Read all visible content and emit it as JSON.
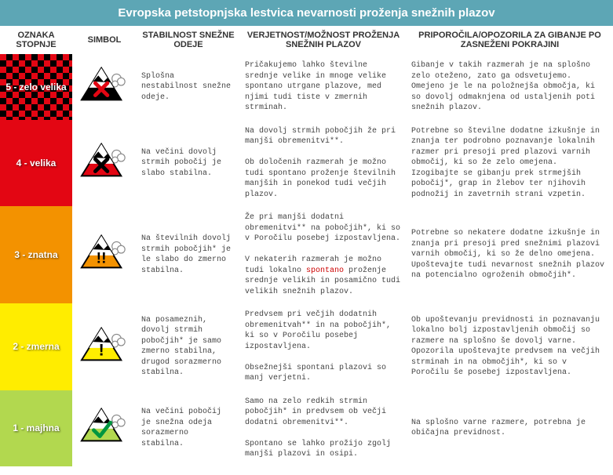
{
  "title": "Evropska petstopnjska lestvica nevarnosti proženja snežnih plazov",
  "title_bg": "#5da6b5",
  "title_color": "#ffffff",
  "columns": {
    "c1": "OZNAKA STOPNJE",
    "c2": "SIMBOL",
    "c3": "STABILNOST SNEŽNE ODEJE",
    "c4": "VERJETNOST/MOŽNOST PROŽENJA SNEŽNIH PLAZOV",
    "c5": "PRIPOROČILA/OPOZORILA ZA GIBANJE PO ZASNEŽENI POKRAJINI"
  },
  "rows": [
    {
      "label": "5 - zelo velika",
      "bg": "#e30613",
      "checker": true,
      "symbol": {
        "body": "#000000",
        "mark": "cross",
        "mark_color": "#e30613"
      },
      "stability": "Splošna nestabilnost snežne odeje.",
      "likelihood": "Pričakujemo lahko številne srednje velike in mnoge velike spontano utrgane plazove, med njimi tudi tiste v zmernih strminah.",
      "advice": "Gibanje v takih razmerah je na splošno zelo oteženo, zato ga odsvetujemo.\nOmejeno je le na položnejša območja, ki so dovolj odmaknjena od ustaljenih poti snežnih plazov."
    },
    {
      "label": "4 - velika",
      "bg": "#e30613",
      "symbol": {
        "body": "#e30613",
        "mark": "cross",
        "mark_color": "#000000"
      },
      "stability": "Na večini dovolj strmih pobočij je slabo stabilna.",
      "likelihood": "Na dovolj strmih pobočjih že pri manjši obremenitvi**.\n\nOb določenih razmerah je možno tudi spontano proženje številnih manjših in ponekod tudi večjih plazov.",
      "advice": "Potrebne so številne dodatne izkušnje in znanja ter podrobno poznavanje lokalnih razmer pri presoji pred plazovi varnih območij, ki so že zelo omejena.\nIzogibajte se gibanju prek strmejših pobočij*, grap in žlebov ter njihovih podnožij in zavetrnih strani vzpetin."
    },
    {
      "label": "3 - znatna",
      "bg": "#f39200",
      "symbol": {
        "body": "#f39200",
        "mark": "double_excl",
        "mark_color": "#000000"
      },
      "stability": "Na številnih dovolj strmih pobočjih* je le slabo do zmerno stabilna.",
      "likelihood_html": "Že pri manjši dodatni obremenitvi** na pobočjih*, ki so v Poročilu posebej izpostavljena.\n\nV nekaterih razmerah je možno tudi lokalno <span class=\"spontano\">spontano</span> proženje srednje velikih in posamično tudi velikih snežnih plazov.",
      "advice": "Potrebne so nekatere dodatne izkušnje in znanja pri presoji pred snežnimi plazovi varnih območij, ki so že delno omejena.\nUpoštevajte tudi nevarnost snežnih plazov na potencialno ogroženih območjih*."
    },
    {
      "label": "2 - zmerna",
      "bg": "#ffed00",
      "symbol": {
        "body": "#ffed00",
        "mark": "excl",
        "mark_color": "#000000"
      },
      "stability": "Na posameznih, dovolj strmih pobočjih* je samo zmerno stabilna, drugod sorazmerno stabilna.",
      "likelihood": "Predvsem pri večjih dodatnih obremenitvah** in na pobočjih*, ki so v Poročilu posebej izpostavljena.\n\nObsežnejši spontani plazovi so manj verjetni.",
      "advice": "Ob upoštevanju previdnosti in poznavanju lokalno bolj izpostavljenih območij so razmere na splošno še dovolj varne.\nOpozorila upoštevajte predvsem na večjih strminah in na območjih*, ki so v Poročilu še posebej izpostavljena."
    },
    {
      "label": "1 - majhna",
      "bg": "#b2d84f",
      "symbol": {
        "body": "#b2d84f",
        "mark": "tick",
        "mark_color": "#009640"
      },
      "stability": "Na večini pobočij je snežna odeja sorazmerno stabilna.",
      "likelihood": "Samo na zelo redkih strmin pobočjih* in predvsem ob večji dodatni obremenitvi**.\n\nSpontano se lahko prožijo zgolj manjši plazovi in osipi.",
      "advice": "Na splošno varne razmere, potrebna je običajna previdnost."
    }
  ]
}
